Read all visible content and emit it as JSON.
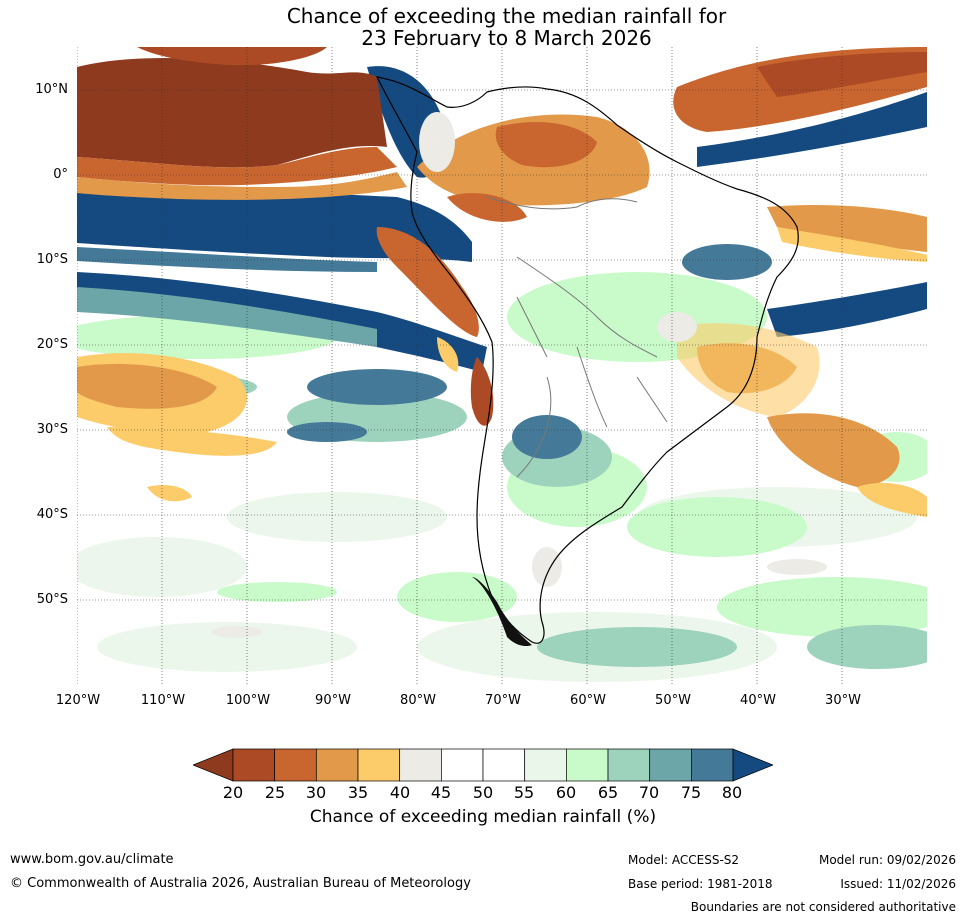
{
  "header": {
    "title_line1": "Chance of exceeding the median rainfall for",
    "title_line2": "23 February to 8 March 2026"
  },
  "map": {
    "region": "South America",
    "lat_labels": [
      "10°N",
      "0°",
      "10°S",
      "20°S",
      "30°S",
      "40°S",
      "50°S"
    ],
    "lon_labels": [
      "120°W",
      "110°W",
      "100°W",
      "90°W",
      "80°W",
      "70°W",
      "60°W",
      "50°W",
      "40°W",
      "30°W"
    ],
    "gridlines": true
  },
  "colorbar": {
    "ticks": [
      "20",
      "25",
      "30",
      "35",
      "40",
      "45",
      "50",
      "55",
      "60",
      "65",
      "70",
      "75",
      "80"
    ],
    "colors": [
      "#8e3a1f",
      "#ad4a26",
      "#c9652f",
      "#e29a4a",
      "#fdcc6a",
      "#ecebe6",
      "#ffffff",
      "#ffffff",
      "#eaf6ea",
      "#c9fac9",
      "#9dd3bd",
      "#6ca6a9",
      "#447a98",
      "#154a80"
    ],
    "label": "Chance of exceeding median rainfall (%)"
  },
  "footer": {
    "website": "www.bom.gov.au/climate",
    "copyright": "© Commonwealth of Australia 2026, Australian Bureau of Meteorology",
    "model": "Model: ACCESS-S2",
    "base_period": "Base period: 1981-2018",
    "model_run": "Model run: 09/02/2026",
    "issued": "Issued: 11/02/2026",
    "disclaimer": "Boundaries are not considered authoritative"
  }
}
